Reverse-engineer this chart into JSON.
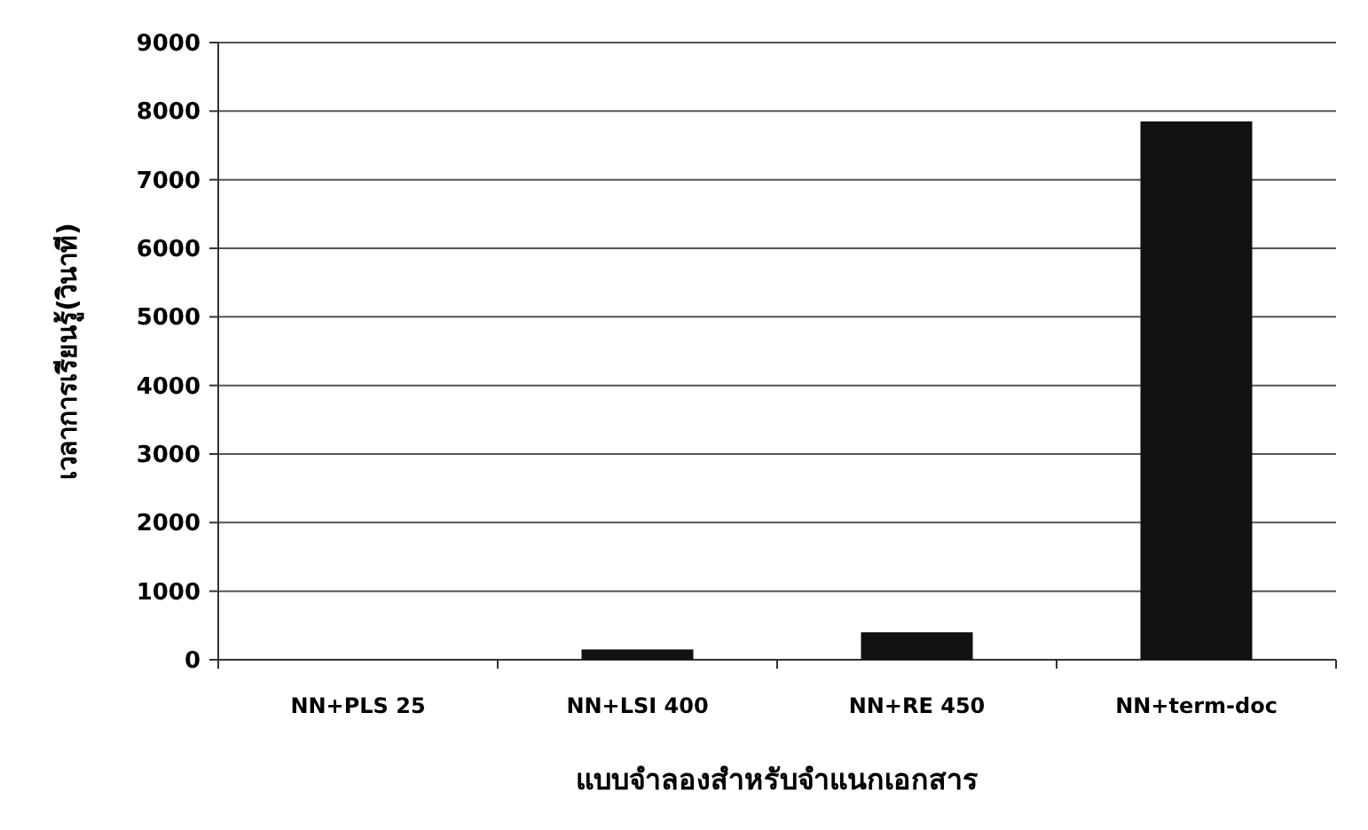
{
  "chart_data": {
    "type": "bar",
    "xlabel": "แบบจำลองสำหรับจำแนกเอกสาร",
    "ylabel": "เวลาการเรียนรู้(วินาที)",
    "categories": [
      "NN+PLS 25",
      "NN+LSI 400",
      "NN+RE 450",
      "NN+term-doc"
    ],
    "values": [
      null,
      150,
      400,
      7850
    ],
    "color": "#111111",
    "ylim": [
      0,
      9000
    ],
    "yticks": [
      0,
      1000,
      2000,
      3000,
      4000,
      5000,
      6000,
      7000,
      8000,
      9000
    ],
    "grid": "y"
  }
}
